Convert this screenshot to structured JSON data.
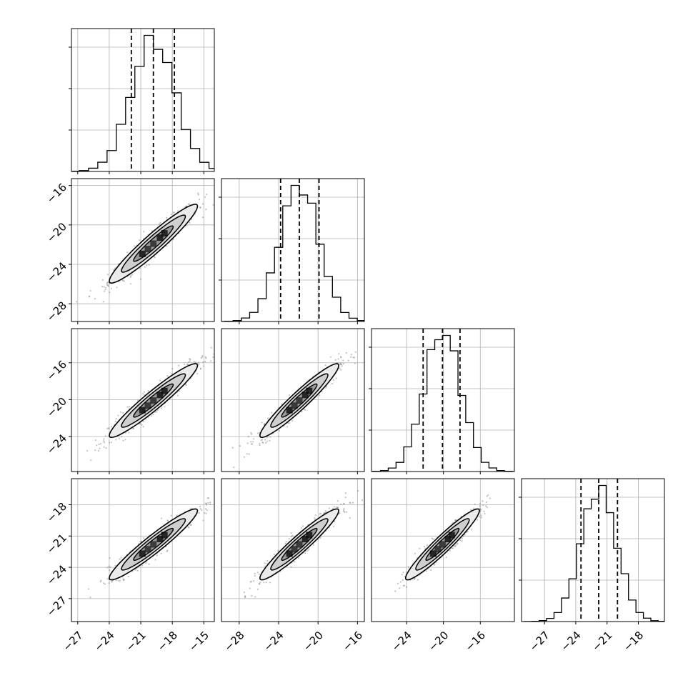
{
  "chart_data": {
    "type": "corner",
    "title": "",
    "grid": true,
    "colors": {
      "frame": "#000000",
      "grid": "#b0b0b0",
      "density": "#000000",
      "points": "#777777"
    },
    "params": [
      {
        "center": -19.8,
        "q16": -21.9,
        "q84": -17.8,
        "std": 2.1,
        "lim": [
          -27.6,
          -14.0
        ],
        "ticks": [
          -27,
          -24,
          -21,
          -18,
          -15
        ],
        "tick_labels": [
          "−27",
          "−24",
          "−21",
          "−18",
          "−15"
        ]
      },
      {
        "center": -21.9,
        "q16": -23.8,
        "q84": -19.9,
        "std": 2.0,
        "lim": [
          -29.8,
          -15.3
        ],
        "ticks": [
          -28,
          -24,
          -20,
          -16
        ],
        "tick_labels": [
          "−28",
          "−24",
          "−20",
          "−16"
        ]
      },
      {
        "center": -20.1,
        "q16": -22.2,
        "q84": -18.2,
        "std": 2.0,
        "lim": [
          -27.8,
          -12.3
        ],
        "ticks": [
          -24,
          -20,
          -16
        ],
        "tick_labels": [
          "−24",
          "−20",
          "−16"
        ]
      },
      {
        "center": -21.8,
        "q16": -23.5,
        "q84": -20.0,
        "std": 1.7,
        "lim": [
          -29.2,
          -15.5
        ],
        "ticks": [
          -27,
          -24,
          -21,
          -18
        ],
        "tick_labels": [
          "−27",
          "−24",
          "−21",
          "−18"
        ]
      }
    ],
    "row_ticks": [
      null,
      {
        "ticks": [
          -28,
          -24,
          -20,
          -16
        ],
        "tick_labels": [
          "−28",
          "−24",
          "−20",
          "−16"
        ]
      },
      {
        "ticks": [
          -24,
          -20,
          -16
        ],
        "tick_labels": [
          "−24",
          "−20",
          "−16"
        ]
      },
      {
        "ticks": [
          -27,
          -24,
          -21,
          -18
        ],
        "tick_labels": [
          "−27",
          "−24",
          "−21",
          "−18"
        ]
      }
    ],
    "correlation": 0.95
  }
}
